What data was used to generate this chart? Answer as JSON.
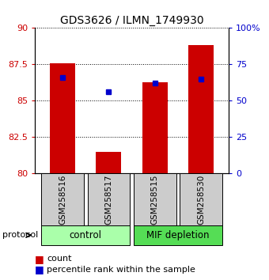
{
  "title": "GDS3626 / ILMN_1749930",
  "samples": [
    "GSM258516",
    "GSM258517",
    "GSM258515",
    "GSM258530"
  ],
  "bar_bottoms": [
    80,
    80,
    80,
    80
  ],
  "bar_tops": [
    87.6,
    81.5,
    86.3,
    88.8
  ],
  "percentile_values": [
    86.6,
    85.6,
    86.2,
    86.5
  ],
  "ylim": [
    80,
    90
  ],
  "yticks": [
    80,
    82.5,
    85,
    87.5,
    90
  ],
  "ytick_labels": [
    "80",
    "82.5",
    "85",
    "87.5",
    "90"
  ],
  "right_yticks": [
    0,
    25,
    50,
    75,
    100
  ],
  "right_ytick_labels": [
    "0",
    "25",
    "50",
    "75",
    "100%"
  ],
  "bar_color": "#cc0000",
  "percentile_color": "#0000cc",
  "bar_width": 0.55,
  "groups": [
    {
      "label": "control",
      "indices": [
        0,
        1
      ],
      "color": "#aaffaa"
    },
    {
      "label": "MIF depletion",
      "indices": [
        2,
        3
      ],
      "color": "#55dd55"
    }
  ],
  "xlabel_color": "#cc0000",
  "right_axis_color": "#0000cc",
  "sample_box_color": "#cccccc",
  "legend_count_color": "#cc0000",
  "legend_percentile_color": "#0000cc"
}
